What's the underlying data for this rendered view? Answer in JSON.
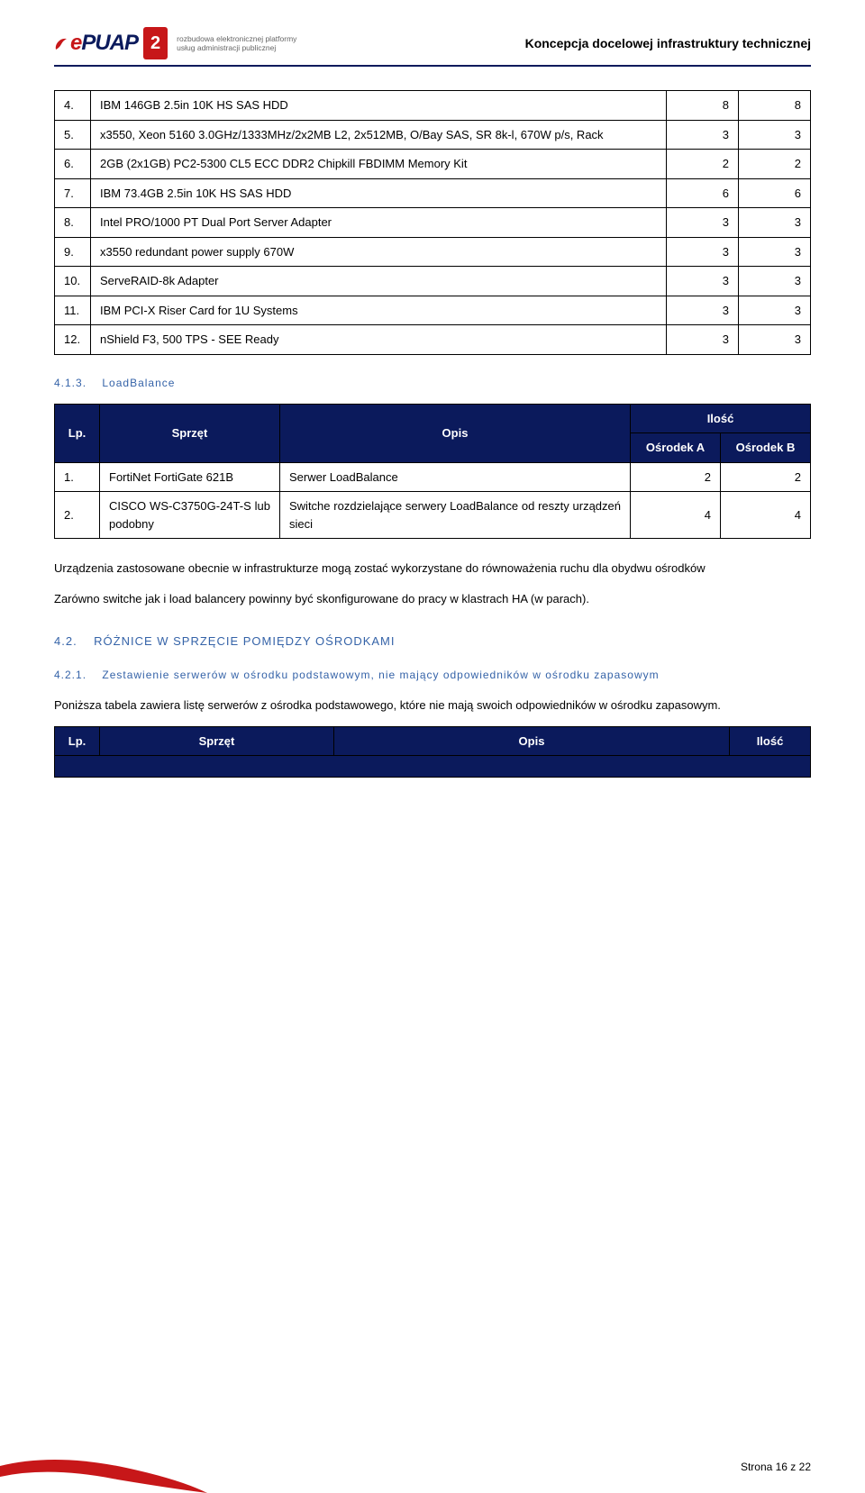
{
  "header": {
    "logo_main1": "e",
    "logo_main2": "PUAP",
    "logo_badge": "2",
    "logo_sub1": "rozbudowa elektronicznej platformy",
    "logo_sub2": "usług administracji publicznej",
    "title": "Koncepcja docelowej infrastruktury technicznej"
  },
  "table1_rows": [
    {
      "n": "4.",
      "desc": "IBM 146GB 2.5in 10K HS SAS HDD",
      "a": "8",
      "b": "8"
    },
    {
      "n": "5.",
      "desc": "x3550, Xeon 5160 3.0GHz/1333MHz/2x2MB L2, 2x512MB, O/Bay SAS, SR 8k-l, 670W p/s, Rack",
      "a": "3",
      "b": "3"
    },
    {
      "n": "6.",
      "desc": "2GB (2x1GB) PC2-5300 CL5 ECC DDR2 Chipkill FBDIMM Memory Kit",
      "a": "2",
      "b": "2"
    },
    {
      "n": "7.",
      "desc": "IBM 73.4GB 2.5in 10K HS SAS HDD",
      "a": "6",
      "b": "6"
    },
    {
      "n": "8.",
      "desc": "Intel PRO/1000 PT Dual Port Server Adapter",
      "a": "3",
      "b": "3"
    },
    {
      "n": "9.",
      "desc": "x3550 redundant power supply 670W",
      "a": "3",
      "b": "3"
    },
    {
      "n": "10.",
      "desc": "ServeRAID-8k Adapter",
      "a": "3",
      "b": "3"
    },
    {
      "n": "11.",
      "desc": "IBM PCI-X Riser Card for 1U Systems",
      "a": "3",
      "b": "3"
    },
    {
      "n": "12.",
      "desc": "nShield F3, 500 TPS - SEE Ready",
      "a": "3",
      "b": "3"
    }
  ],
  "sec413_num": "4.1.3.",
  "sec413_title": "LoadBalance",
  "table2_head": {
    "lp": "Lp.",
    "sprzet": "Sprzęt",
    "opis": "Opis",
    "ilosc": "Ilość",
    "a": "Ośrodek A",
    "b": "Ośrodek B"
  },
  "table2_rows": [
    {
      "n": "1.",
      "sprzet": "FortiNet FortiGate 621B",
      "opis": "Serwer LoadBalance",
      "a": "2",
      "b": "2"
    },
    {
      "n": "2.",
      "sprzet": "CISCO WS-C3750G-24T-S lub podobny",
      "opis": "Switche rozdzielające serwery LoadBalance od reszty urządzeń sieci",
      "a": "4",
      "b": "4"
    }
  ],
  "para1": "Urządzenia zastosowane obecnie w infrastrukturze mogą zostać wykorzystane do równoważenia ruchu dla obydwu ośrodków",
  "para2": "Zarówno switche jak i load balancery powinny być skonfigurowane do pracy w klastrach HA (w parach).",
  "sec42_num": "4.2.",
  "sec42_title": "RÓŻNICE W SPRZĘCIE POMIĘDZY OŚRODKAMI",
  "sec421_num": "4.2.1.",
  "sec421_title": "Zestawienie serwerów w ośrodku podstawowym, nie mający odpowiedników w ośrodku zapasowym",
  "para3": "Poniższa tabela zawiera listę serwerów z ośrodka podstawowego, które nie mają swoich odpowiedników w ośrodku zapasowym.",
  "table3_head": {
    "lp": "Lp.",
    "sprzet": "Sprzęt",
    "opis": "Opis",
    "ilosc": "Ilość"
  },
  "footer": "Strona 16 z 22",
  "colors": {
    "navy": "#0b1a5c",
    "linkblue": "#3563a8",
    "red": "#c71719",
    "text": "#000000",
    "bg": "#ffffff"
  }
}
